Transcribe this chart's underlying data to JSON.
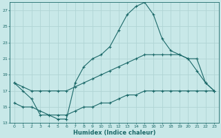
{
  "xlabel": "Humidex (Indice chaleur)",
  "bg_color": "#c8e8e8",
  "grid_color": "#b0d4d4",
  "line_color": "#1a6868",
  "xlim": [
    -0.5,
    23.5
  ],
  "ylim": [
    13,
    28
  ],
  "xticks": [
    0,
    1,
    2,
    3,
    4,
    5,
    6,
    7,
    8,
    9,
    10,
    11,
    12,
    13,
    14,
    15,
    16,
    17,
    18,
    19,
    20,
    21,
    22,
    23
  ],
  "yticks": [
    13,
    15,
    17,
    19,
    21,
    23,
    25,
    27
  ],
  "line1_x": [
    0,
    1,
    2,
    3,
    4,
    5,
    6,
    7,
    8,
    9,
    10,
    11,
    12,
    13,
    14,
    15,
    16,
    17,
    18,
    19,
    20,
    21,
    22,
    23
  ],
  "line1_y": [
    18,
    17,
    16,
    14,
    14,
    13.5,
    13.5,
    18,
    20,
    21,
    21.5,
    22.5,
    24.5,
    26.5,
    27.5,
    28,
    26.5,
    23.5,
    22,
    21.5,
    21,
    19.5,
    18,
    17
  ],
  "line2_x": [
    0,
    1,
    2,
    3,
    4,
    5,
    6,
    7,
    8,
    9,
    10,
    11,
    12,
    13,
    14,
    15,
    16,
    17,
    18,
    19,
    20,
    21,
    22,
    23
  ],
  "line2_y": [
    18,
    17.5,
    17,
    17,
    17,
    17,
    17,
    17.5,
    18,
    18.5,
    19,
    19.5,
    20,
    20.5,
    21,
    21.5,
    21.5,
    21.5,
    21.5,
    21.5,
    21,
    21,
    18,
    17
  ],
  "line3_x": [
    0,
    1,
    2,
    3,
    4,
    5,
    6,
    7,
    8,
    9,
    10,
    11,
    12,
    13,
    14,
    15,
    16,
    17,
    18,
    19,
    20,
    21,
    22,
    23
  ],
  "line3_y": [
    15.5,
    15,
    15,
    14.5,
    14,
    14,
    14,
    14.5,
    15,
    15,
    15.5,
    15.5,
    16,
    16.5,
    16.5,
    17,
    17,
    17,
    17,
    17,
    17,
    17,
    17,
    17
  ]
}
